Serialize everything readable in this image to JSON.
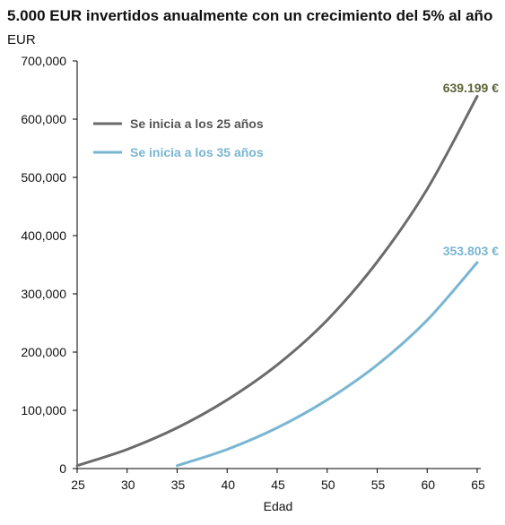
{
  "chart_data": {
    "type": "line",
    "title": "5.000 EUR invertidos anualmente con un crecimiento del 5% al año",
    "ylabel": "EUR",
    "xlabel": "Edad",
    "xlim": [
      25,
      65
    ],
    "ylim": [
      0,
      700000
    ],
    "x_ticks": [
      25,
      30,
      35,
      40,
      45,
      50,
      55,
      60,
      65
    ],
    "y_ticks": [
      0,
      100000,
      200000,
      300000,
      400000,
      500000,
      600000,
      700000
    ],
    "y_tick_labels": [
      "0",
      "100,000",
      "200,000",
      "300,000",
      "400,000",
      "500,000",
      "600,000",
      "700,000"
    ],
    "grid": false,
    "legend_position": "top-left",
    "series": [
      {
        "name": "Se inicia a los 25 años",
        "color": "#6b6b6b",
        "x": [
          25,
          30,
          35,
          40,
          45,
          50,
          55,
          60,
          65
        ],
        "y": [
          5000,
          33000,
          70000,
          118000,
          178000,
          255000,
          355000,
          480000,
          639199
        ],
        "end_label": "639.199 €",
        "end_label_color": "#5c6438"
      },
      {
        "name": "Se inicia a los 35 años",
        "color": "#79b6d2",
        "x": [
          35,
          40,
          45,
          50,
          55,
          60,
          65
        ],
        "y": [
          5000,
          33000,
          70000,
          118000,
          178000,
          255000,
          353803
        ],
        "end_label": "353.803 €",
        "end_label_color": "#79b6d2"
      }
    ]
  }
}
